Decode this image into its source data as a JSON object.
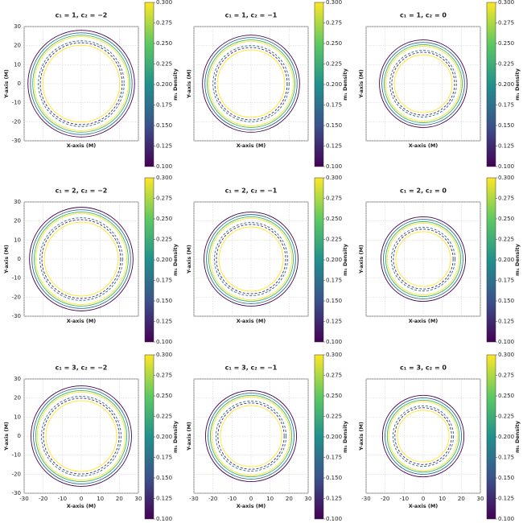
{
  "chart_data": [
    {
      "type": "circles",
      "title": "c₁ = 1, c₂ = −2",
      "xlabel": "X-axis (M)",
      "ylabel": "Y-axis (M)",
      "colorbar_label": "m₁ Density",
      "xlim": [
        -30,
        30
      ],
      "ylim": [
        -30,
        30
      ],
      "xticks": [
        -30,
        -20,
        -10,
        0,
        10,
        20,
        30
      ],
      "yticks": [
        -30,
        -20,
        -10,
        0,
        10,
        20,
        30
      ],
      "xtick_labels": false,
      "ytick_labels": true,
      "grid": true,
      "clim": [
        0.1,
        0.3
      ],
      "cticks": [
        {
          "value": 0.1,
          "label": "0.100"
        },
        {
          "value": 0.125,
          "label": "0.125"
        },
        {
          "value": 0.15,
          "label": "0.150"
        },
        {
          "value": 0.175,
          "label": "0.175"
        },
        {
          "value": 0.2,
          "label": "0.200"
        },
        {
          "value": 0.225,
          "label": "0.225"
        },
        {
          "value": 0.25,
          "label": "0.250"
        },
        {
          "value": 0.275,
          "label": "0.275"
        },
        {
          "value": 0.3,
          "label": "0.300"
        }
      ],
      "radii": [
        28,
        26.7,
        25.5,
        24.7,
        22.5,
        21.5,
        20.2
      ],
      "colors": [
        "#440154",
        "#31688e",
        "#35b779",
        "#fde725",
        "#31688e",
        "#3b2f7a",
        "#fde725"
      ],
      "dashed": [
        false,
        false,
        false,
        false,
        true,
        true,
        false
      ]
    },
    {
      "type": "circles",
      "title": "c₁ = 1, c₂ = −1",
      "xlabel": "X-axis (M)",
      "ylabel": "Y-axis (M)",
      "colorbar_label": "m₁ Density",
      "xlim": [
        -30,
        30
      ],
      "ylim": [
        -30,
        30
      ],
      "xticks": [
        -30,
        -20,
        -10,
        0,
        10,
        20,
        30
      ],
      "yticks": [
        -30,
        -20,
        -10,
        0,
        10,
        20,
        30
      ],
      "xtick_labels": false,
      "ytick_labels": false,
      "grid": true,
      "clim": [
        0.1,
        0.3
      ],
      "cticks": [
        {
          "value": 0.1,
          "label": "0.100"
        },
        {
          "value": 0.125,
          "label": "0.125"
        },
        {
          "value": 0.15,
          "label": "0.150"
        },
        {
          "value": 0.175,
          "label": "0.175"
        },
        {
          "value": 0.2,
          "label": "0.200"
        },
        {
          "value": 0.225,
          "label": "0.225"
        },
        {
          "value": 0.25,
          "label": "0.250"
        },
        {
          "value": 0.275,
          "label": "0.275"
        },
        {
          "value": 0.3,
          "label": "0.300"
        }
      ],
      "radii": [
        25.5,
        24.2,
        23,
        22.2,
        20,
        19,
        17.7
      ],
      "colors": [
        "#440154",
        "#31688e",
        "#35b779",
        "#fde725",
        "#31688e",
        "#3b2f7a",
        "#fde725"
      ],
      "dashed": [
        false,
        false,
        false,
        false,
        true,
        true,
        false
      ]
    },
    {
      "type": "circles",
      "title": "c₁ = 1, c₂ = 0",
      "xlabel": "X-axis (M)",
      "ylabel": "Y-axis (M)",
      "colorbar_label": "m₁ Density",
      "xlim": [
        -30,
        30
      ],
      "ylim": [
        -30,
        30
      ],
      "xticks": [
        -30,
        -20,
        -10,
        0,
        10,
        20,
        30
      ],
      "yticks": [
        -30,
        -20,
        -10,
        0,
        10,
        20,
        30
      ],
      "xtick_labels": false,
      "ytick_labels": false,
      "grid": true,
      "clim": [
        0.1,
        0.3
      ],
      "cticks": [
        {
          "value": 0.1,
          "label": "0.100"
        },
        {
          "value": 0.125,
          "label": "0.125"
        },
        {
          "value": 0.15,
          "label": "0.150"
        },
        {
          "value": 0.175,
          "label": "0.175"
        },
        {
          "value": 0.2,
          "label": "0.200"
        },
        {
          "value": 0.225,
          "label": "0.225"
        },
        {
          "value": 0.25,
          "label": "0.250"
        },
        {
          "value": 0.275,
          "label": "0.275"
        },
        {
          "value": 0.3,
          "label": "0.300"
        }
      ],
      "radii": [
        23,
        21.7,
        20.5,
        19.7,
        17.5,
        16.5,
        15.2
      ],
      "colors": [
        "#440154",
        "#31688e",
        "#35b779",
        "#fde725",
        "#31688e",
        "#3b2f7a",
        "#fde725"
      ],
      "dashed": [
        false,
        false,
        false,
        false,
        true,
        true,
        false
      ]
    },
    {
      "type": "circles",
      "title": "c₁ = 2, c₂ = −2",
      "xlabel": "X-axis (M)",
      "ylabel": "Y-axis (M)",
      "colorbar_label": "m₁ Density",
      "xlim": [
        -30,
        30
      ],
      "ylim": [
        -30,
        30
      ],
      "xticks": [
        -30,
        -20,
        -10,
        0,
        10,
        20,
        30
      ],
      "yticks": [
        -30,
        -20,
        -10,
        0,
        10,
        20,
        30
      ],
      "xtick_labels": false,
      "ytick_labels": true,
      "grid": true,
      "clim": [
        0.1,
        0.3
      ],
      "cticks": [
        {
          "value": 0.1,
          "label": "0.100"
        },
        {
          "value": 0.125,
          "label": "0.125"
        },
        {
          "value": 0.15,
          "label": "0.150"
        },
        {
          "value": 0.175,
          "label": "0.175"
        },
        {
          "value": 0.2,
          "label": "0.200"
        },
        {
          "value": 0.225,
          "label": "0.225"
        },
        {
          "value": 0.25,
          "label": "0.250"
        },
        {
          "value": 0.275,
          "label": "0.275"
        },
        {
          "value": 0.3,
          "label": "0.300"
        }
      ],
      "radii": [
        27.2,
        25.9,
        24.7,
        23.9,
        21.7,
        20.7,
        19.4
      ],
      "colors": [
        "#440154",
        "#31688e",
        "#35b779",
        "#fde725",
        "#31688e",
        "#3b2f7a",
        "#fde725"
      ],
      "dashed": [
        false,
        false,
        false,
        false,
        true,
        true,
        false
      ]
    },
    {
      "type": "circles",
      "title": "c₁ = 2, c₂ = −1",
      "xlabel": "X-axis (M)",
      "ylabel": "Y-axis (M)",
      "colorbar_label": "m₁ Density",
      "xlim": [
        -30,
        30
      ],
      "ylim": [
        -30,
        30
      ],
      "xticks": [
        -30,
        -20,
        -10,
        0,
        10,
        20,
        30
      ],
      "yticks": [
        -30,
        -20,
        -10,
        0,
        10,
        20,
        30
      ],
      "xtick_labels": false,
      "ytick_labels": false,
      "grid": true,
      "clim": [
        0.1,
        0.3
      ],
      "cticks": [
        {
          "value": 0.1,
          "label": "0.100"
        },
        {
          "value": 0.125,
          "label": "0.125"
        },
        {
          "value": 0.15,
          "label": "0.150"
        },
        {
          "value": 0.175,
          "label": "0.175"
        },
        {
          "value": 0.2,
          "label": "0.200"
        },
        {
          "value": 0.225,
          "label": "0.225"
        },
        {
          "value": 0.25,
          "label": "0.250"
        },
        {
          "value": 0.275,
          "label": "0.275"
        },
        {
          "value": 0.3,
          "label": "0.300"
        }
      ],
      "radii": [
        24.7,
        23.4,
        22.2,
        21.4,
        19.2,
        18.2,
        16.9
      ],
      "colors": [
        "#440154",
        "#31688e",
        "#35b779",
        "#fde725",
        "#31688e",
        "#3b2f7a",
        "#fde725"
      ],
      "dashed": [
        false,
        false,
        false,
        false,
        true,
        true,
        false
      ]
    },
    {
      "type": "circles",
      "title": "c₁ = 2, c₂ = 0",
      "xlabel": "X-axis (M)",
      "ylabel": "Y-axis (M)",
      "colorbar_label": "m₁ Density",
      "xlim": [
        -30,
        30
      ],
      "ylim": [
        -30,
        30
      ],
      "xticks": [
        -30,
        -20,
        -10,
        0,
        10,
        20,
        30
      ],
      "yticks": [
        -30,
        -20,
        -10,
        0,
        10,
        20,
        30
      ],
      "xtick_labels": false,
      "ytick_labels": false,
      "grid": true,
      "clim": [
        0.1,
        0.3
      ],
      "cticks": [
        {
          "value": 0.1,
          "label": "0.100"
        },
        {
          "value": 0.125,
          "label": "0.125"
        },
        {
          "value": 0.15,
          "label": "0.150"
        },
        {
          "value": 0.175,
          "label": "0.175"
        },
        {
          "value": 0.2,
          "label": "0.200"
        },
        {
          "value": 0.225,
          "label": "0.225"
        },
        {
          "value": 0.25,
          "label": "0.250"
        },
        {
          "value": 0.275,
          "label": "0.275"
        },
        {
          "value": 0.3,
          "label": "0.300"
        }
      ],
      "radii": [
        22.2,
        20.9,
        19.7,
        18.9,
        16.7,
        15.7,
        14.4
      ],
      "colors": [
        "#440154",
        "#31688e",
        "#35b779",
        "#fde725",
        "#31688e",
        "#3b2f7a",
        "#fde725"
      ],
      "dashed": [
        false,
        false,
        false,
        false,
        true,
        true,
        false
      ]
    },
    {
      "type": "circles",
      "title": "c₁ = 3, c₂ = −2",
      "xlabel": "X-axis (M)",
      "ylabel": "Y-axis (M)",
      "colorbar_label": "m₁ Density",
      "xlim": [
        -30,
        30
      ],
      "ylim": [
        -30,
        30
      ],
      "xticks": [
        -30,
        -20,
        -10,
        0,
        10,
        20,
        30
      ],
      "yticks": [
        -30,
        -20,
        -10,
        0,
        10,
        20,
        30
      ],
      "xtick_labels": true,
      "ytick_labels": true,
      "grid": true,
      "clim": [
        0.1,
        0.3
      ],
      "cticks": [
        {
          "value": 0.1,
          "label": "0.100"
        },
        {
          "value": 0.125,
          "label": "0.125"
        },
        {
          "value": 0.15,
          "label": "0.150"
        },
        {
          "value": 0.175,
          "label": "0.175"
        },
        {
          "value": 0.2,
          "label": "0.200"
        },
        {
          "value": 0.225,
          "label": "0.225"
        },
        {
          "value": 0.25,
          "label": "0.250"
        },
        {
          "value": 0.275,
          "label": "0.275"
        },
        {
          "value": 0.3,
          "label": "0.300"
        }
      ],
      "radii": [
        26.4,
        25.1,
        23.9,
        23.1,
        20.9,
        19.9,
        18.6
      ],
      "colors": [
        "#440154",
        "#31688e",
        "#35b779",
        "#fde725",
        "#31688e",
        "#3b2f7a",
        "#fde725"
      ],
      "dashed": [
        false,
        false,
        false,
        false,
        true,
        true,
        false
      ]
    },
    {
      "type": "circles",
      "title": "c₁ = 3, c₂ = −1",
      "xlabel": "X-axis (M)",
      "ylabel": "Y-axis (M)",
      "colorbar_label": "m₁ Density",
      "xlim": [
        -30,
        30
      ],
      "ylim": [
        -30,
        30
      ],
      "xticks": [
        -30,
        -20,
        -10,
        0,
        10,
        20,
        30
      ],
      "yticks": [
        -30,
        -20,
        -10,
        0,
        10,
        20,
        30
      ],
      "xtick_labels": true,
      "ytick_labels": false,
      "grid": true,
      "clim": [
        0.1,
        0.3
      ],
      "cticks": [
        {
          "value": 0.1,
          "label": "0.100"
        },
        {
          "value": 0.125,
          "label": "0.125"
        },
        {
          "value": 0.15,
          "label": "0.150"
        },
        {
          "value": 0.175,
          "label": "0.175"
        },
        {
          "value": 0.2,
          "label": "0.200"
        },
        {
          "value": 0.225,
          "label": "0.225"
        },
        {
          "value": 0.25,
          "label": "0.250"
        },
        {
          "value": 0.275,
          "label": "0.275"
        },
        {
          "value": 0.3,
          "label": "0.300"
        }
      ],
      "radii": [
        23.9,
        22.6,
        21.4,
        20.6,
        18.4,
        17.4,
        16.1
      ],
      "colors": [
        "#440154",
        "#31688e",
        "#35b779",
        "#fde725",
        "#31688e",
        "#3b2f7a",
        "#fde725"
      ],
      "dashed": [
        false,
        false,
        false,
        false,
        true,
        true,
        false
      ]
    },
    {
      "type": "circles",
      "title": "c₁ = 3, c₂ = 0",
      "xlabel": "X-axis (M)",
      "ylabel": "Y-axis (M)",
      "colorbar_label": "m₁ Density",
      "xlim": [
        -30,
        30
      ],
      "ylim": [
        -30,
        30
      ],
      "xticks": [
        -30,
        -20,
        -10,
        0,
        10,
        20,
        30
      ],
      "yticks": [
        -30,
        -20,
        -10,
        0,
        10,
        20,
        30
      ],
      "xtick_labels": true,
      "ytick_labels": false,
      "grid": true,
      "clim": [
        0.1,
        0.3
      ],
      "cticks": [
        {
          "value": 0.1,
          "label": "0.100"
        },
        {
          "value": 0.125,
          "label": "0.125"
        },
        {
          "value": 0.15,
          "label": "0.150"
        },
        {
          "value": 0.175,
          "label": "0.175"
        },
        {
          "value": 0.2,
          "label": "0.200"
        },
        {
          "value": 0.225,
          "label": "0.225"
        },
        {
          "value": 0.25,
          "label": "0.250"
        },
        {
          "value": 0.275,
          "label": "0.275"
        },
        {
          "value": 0.3,
          "label": "0.300"
        }
      ],
      "radii": [
        21.4,
        20.1,
        18.9,
        18.1,
        15.9,
        14.9,
        13.6
      ],
      "colors": [
        "#440154",
        "#31688e",
        "#35b779",
        "#fde725",
        "#31688e",
        "#3b2f7a",
        "#fde725"
      ],
      "dashed": [
        false,
        false,
        false,
        false,
        true,
        true,
        false
      ]
    }
  ]
}
